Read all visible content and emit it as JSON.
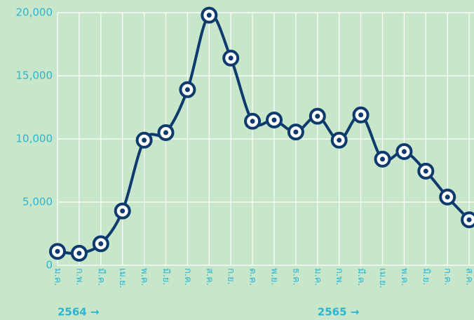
{
  "chart_data": {
    "type": "line",
    "categories": [
      "ม.ค.",
      "ก.พ.",
      "มี.ค.",
      "เม.ย.",
      "พ.ค.",
      "มิ.ย.",
      "ก.ค.",
      "ส.ค.",
      "ก.ย.",
      "ต.ค.",
      "พ.ย.",
      "ธ.ค.",
      "ม.ค.",
      "ก.พ.",
      "มี.ค.",
      "เม.ย.",
      "พ.ค.",
      "มิ.ย.",
      "ก.ค.",
      "ส.ค."
    ],
    "values": [
      1100,
      950,
      1700,
      4300,
      9900,
      10500,
      13900,
      19800,
      16400,
      11400,
      11500,
      10550,
      11800,
      9900,
      11900,
      8400,
      9000,
      7450,
      5400,
      3600
    ],
    "color": "#0d3b6e",
    "ylim": [
      0,
      20000
    ],
    "yticks": [
      0,
      {
        "value": 5000,
        "label": "5,000"
      },
      {
        "value": 10000,
        "label": "10,000"
      },
      {
        "value": 15000,
        "label": "15,000"
      },
      {
        "value": 20000,
        "label": "20,000"
      }
    ],
    "grid": true,
    "annotations": [
      "2564 →",
      "2565 →"
    ]
  }
}
